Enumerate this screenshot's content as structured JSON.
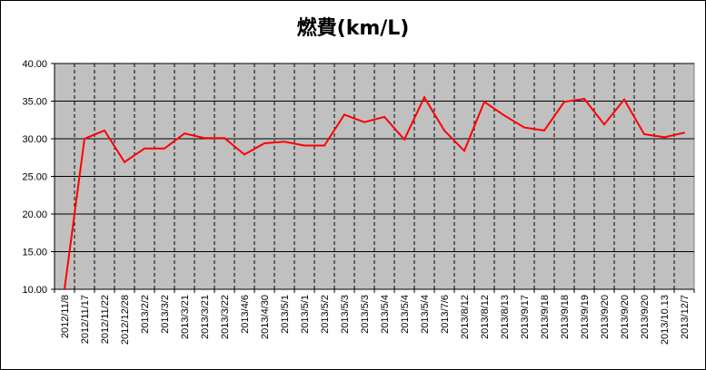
{
  "chart_data": {
    "type": "line",
    "title": "燃費(km/L)",
    "xlabel": "",
    "ylabel": "",
    "ylim": [
      10,
      40
    ],
    "y_ticks": [
      "10.00",
      "15.00",
      "20.00",
      "25.00",
      "30.00",
      "35.00",
      "40.00"
    ],
    "grid": {
      "horizontal": "solid",
      "vertical": "dashed"
    },
    "plot_background": "#c0c0c0",
    "categories": [
      "2012/11/8",
      "2012/11/17",
      "2012/11/22",
      "2012/12/28",
      "2013/2/2",
      "2013/3/2",
      "2013/3/21",
      "2013/3/21",
      "2013/3/22",
      "2013/4/6",
      "2013/4/30",
      "2013/5/1",
      "2013/5/1",
      "2013/5/2",
      "2013/5/3",
      "2013/5/3",
      "2013/5/4",
      "2013/5/4",
      "2013/5/4",
      "2013/7/6",
      "2013/8/12",
      "2013/8/12",
      "2013/8/13",
      "2013/9/17",
      "2013/9/18",
      "2013/9/18",
      "2013/9/19",
      "2013/9/20",
      "2013/9/20",
      "2013/9/20",
      "2013/10.13",
      "2013/12/7"
    ],
    "series": [
      {
        "color": "#ff0000",
        "values": [
          10.0,
          30.0,
          31.1,
          26.9,
          28.7,
          28.7,
          30.7,
          30.1,
          30.1,
          27.9,
          29.4,
          29.6,
          29.1,
          29.1,
          33.2,
          32.2,
          32.9,
          29.9,
          35.5,
          31.1,
          28.4,
          34.9,
          33.1,
          31.5,
          31.1,
          34.9,
          35.3,
          31.9,
          35.2,
          30.6,
          30.2,
          30.8
        ]
      }
    ]
  }
}
